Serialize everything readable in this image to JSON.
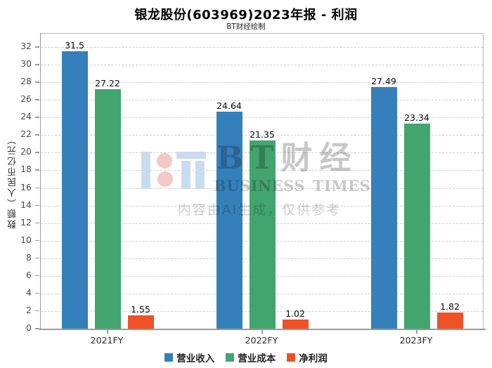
{
  "chart_data": {
    "type": "bar",
    "title": "银龙股份(603969)2023年报 - 利润",
    "subtitle": "BT财经绘制",
    "categories": [
      "2021FY",
      "2022FY",
      "2023FY"
    ],
    "series": [
      {
        "name": "营业收入",
        "color": "#3580bb",
        "values": [
          31.5,
          24.64,
          27.49
        ]
      },
      {
        "name": "营业成本",
        "color": "#42a56e",
        "values": [
          27.22,
          21.35,
          23.34
        ]
      },
      {
        "name": "净利润",
        "color": "#ee5126",
        "values": [
          1.55,
          1.02,
          1.82
        ]
      }
    ],
    "ylabel": "数额（人民币亿元）",
    "ylim": [
      0,
      32
    ],
    "ytick_step": 2,
    "grid": "horizontal-dashed",
    "legend_position": "bottom",
    "value_labels": true
  },
  "watermark": {
    "brand_cn": "BT财经",
    "brand_en": "BUSINESS TIMES",
    "disclaimer": "内容由AI生成，仅供参考",
    "logo_colors": {
      "blue": "#c9dbee",
      "pink": "#f2c9c5"
    }
  }
}
